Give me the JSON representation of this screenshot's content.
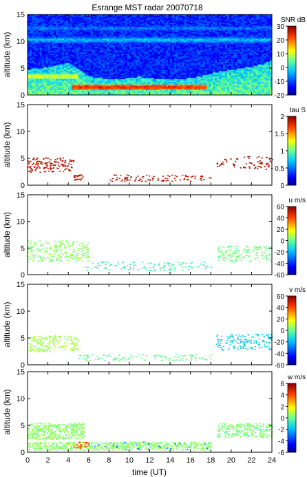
{
  "title": "Esrange MST radar 20070718",
  "chart_data": [
    {
      "type": "heatmap",
      "quantity": "snr",
      "title": "Esrange MST radar 20070718",
      "ylabel": "altitude (km)",
      "xlabel": "",
      "xlim": [
        0,
        24
      ],
      "ylim": [
        0,
        15
      ],
      "y_ticks": [
        0,
        5,
        10,
        15
      ],
      "x_ticks": [
        0,
        2,
        4,
        6,
        8,
        10,
        12,
        14,
        16,
        18,
        20,
        22,
        24
      ],
      "x_tick_labels_shown": false,
      "colorbar": {
        "label": "SNR dB",
        "min": -20,
        "max": 30,
        "ticks": [
          -20,
          -10,
          0,
          10,
          20,
          30
        ]
      },
      "features": {
        "background_snr_db": -12,
        "bands_km": [
          {
            "altitude": 1.5,
            "snr_db": 25,
            "from": 4.5,
            "to": 17.5
          },
          {
            "altitude": 3.5,
            "snr_db": 12,
            "from": 0,
            "to": 5
          },
          {
            "altitude": 10.3,
            "snr_db": -2,
            "from": 0,
            "to": 24
          },
          {
            "altitude": 12.5,
            "snr_db": -6,
            "from": 0,
            "to": 24
          }
        ],
        "lower_layer_top_km": [
          4.8,
          5.0,
          5.2,
          5.6,
          6.0,
          5.0,
          3.5,
          3.2,
          3.0,
          3.0,
          3.2,
          3.4,
          3.2,
          3.0,
          3.0,
          3.0,
          3.2,
          3.5,
          4.0,
          4.5,
          4.7,
          5.0,
          5.3,
          5.8,
          6.5
        ]
      }
    },
    {
      "type": "scatter",
      "quantity": "tau",
      "ylabel": "altitude (km)",
      "xlim": [
        0,
        24
      ],
      "ylim": [
        0,
        15
      ],
      "y_ticks": [
        0,
        5,
        10,
        15
      ],
      "x_ticks": [
        0,
        2,
        4,
        6,
        8,
        10,
        12,
        14,
        16,
        18,
        20,
        22,
        24
      ],
      "x_tick_labels_shown": false,
      "colorbar": {
        "label": "tau S",
        "min": 0,
        "max": 2,
        "ticks": [
          0,
          0.5,
          1,
          1.5,
          2
        ]
      },
      "point_groups": [
        {
          "x_range": [
            0,
            4.5
          ],
          "alt_range": [
            2.5,
            5.2
          ],
          "value": 1.9,
          "count": 140
        },
        {
          "x_range": [
            4.5,
            5.5
          ],
          "alt_range": [
            1.0,
            2.0
          ],
          "value": 1.9,
          "count": 25
        },
        {
          "x_range": [
            8,
            18
          ],
          "alt_range": [
            0.8,
            2.0
          ],
          "value": 1.9,
          "count": 90
        },
        {
          "x_range": [
            18.5,
            24
          ],
          "alt_range": [
            3.0,
            5.5
          ],
          "value": 1.9,
          "count": 70
        }
      ]
    },
    {
      "type": "scatter",
      "quantity": "u",
      "ylabel": "altitude (km)",
      "xlim": [
        0,
        24
      ],
      "ylim": [
        0,
        15
      ],
      "y_ticks": [
        0,
        5,
        10,
        15
      ],
      "x_ticks": [
        0,
        2,
        4,
        6,
        8,
        10,
        12,
        14,
        16,
        18,
        20,
        22,
        24
      ],
      "x_tick_labels_shown": false,
      "colorbar": {
        "label": "u m/s",
        "min": -60,
        "max": 60,
        "ticks": [
          -60,
          -40,
          -20,
          0,
          20,
          40,
          60
        ]
      },
      "point_groups": [
        {
          "x_range": [
            0,
            6
          ],
          "alt_range": [
            2.5,
            6.5
          ],
          "value": 5,
          "count": 260
        },
        {
          "x_range": [
            5,
            18
          ],
          "alt_range": [
            0.8,
            2.5
          ],
          "value": -5,
          "count": 120
        },
        {
          "x_range": [
            18.5,
            24
          ],
          "alt_range": [
            2.5,
            5.5
          ],
          "value": 2,
          "count": 160
        }
      ]
    },
    {
      "type": "scatter",
      "quantity": "v",
      "ylabel": "altitude (km)",
      "xlim": [
        0,
        24
      ],
      "ylim": [
        0,
        15
      ],
      "y_ticks": [
        0,
        5,
        10,
        15
      ],
      "x_ticks": [
        0,
        2,
        4,
        6,
        8,
        10,
        12,
        14,
        16,
        18,
        20,
        22,
        24
      ],
      "x_tick_labels_shown": false,
      "colorbar": {
        "label": "v m/s",
        "min": -60,
        "max": 60,
        "ticks": [
          -60,
          -40,
          -20,
          0,
          20,
          40,
          60
        ]
      },
      "point_groups": [
        {
          "x_range": [
            0,
            5
          ],
          "alt_range": [
            2.5,
            5.5
          ],
          "value": 8,
          "count": 200
        },
        {
          "x_range": [
            5,
            18
          ],
          "alt_range": [
            0.8,
            2.0
          ],
          "value": 0,
          "count": 110
        },
        {
          "x_range": [
            18.5,
            24
          ],
          "alt_range": [
            2.8,
            5.8
          ],
          "value": -15,
          "count": 160
        }
      ]
    },
    {
      "type": "scatter",
      "quantity": "w",
      "ylabel": "altitude (km)",
      "xlabel": "time (UT)",
      "xlim": [
        0,
        24
      ],
      "ylim": [
        0,
        15
      ],
      "y_ticks": [
        0,
        5,
        10,
        15
      ],
      "x_ticks": [
        0,
        2,
        4,
        6,
        8,
        10,
        12,
        14,
        16,
        18,
        20,
        22,
        24
      ],
      "x_tick_labels_shown": true,
      "colorbar": {
        "label": "w m/s",
        "min": -6,
        "max": 6,
        "ticks": [
          -6,
          -4,
          -2,
          0,
          2,
          4,
          6
        ]
      },
      "point_groups": [
        {
          "x_range": [
            0,
            5.5
          ],
          "alt_range": [
            2.5,
            5.5
          ],
          "value": 0.5,
          "count": 420
        },
        {
          "x_range": [
            0,
            18
          ],
          "alt_range": [
            0.5,
            2.0
          ],
          "value": 0.5,
          "count": 700
        },
        {
          "x_range": [
            18.5,
            24
          ],
          "alt_range": [
            2.8,
            5.5
          ],
          "value": 0.3,
          "count": 260
        },
        {
          "x_range": [
            4.5,
            6
          ],
          "alt_range": [
            0.8,
            2.0
          ],
          "value": 4,
          "count": 30
        },
        {
          "x_range": [
            6,
            18
          ],
          "alt_range": [
            0.5,
            2.0
          ],
          "value": -3,
          "count": 25
        }
      ]
    }
  ]
}
